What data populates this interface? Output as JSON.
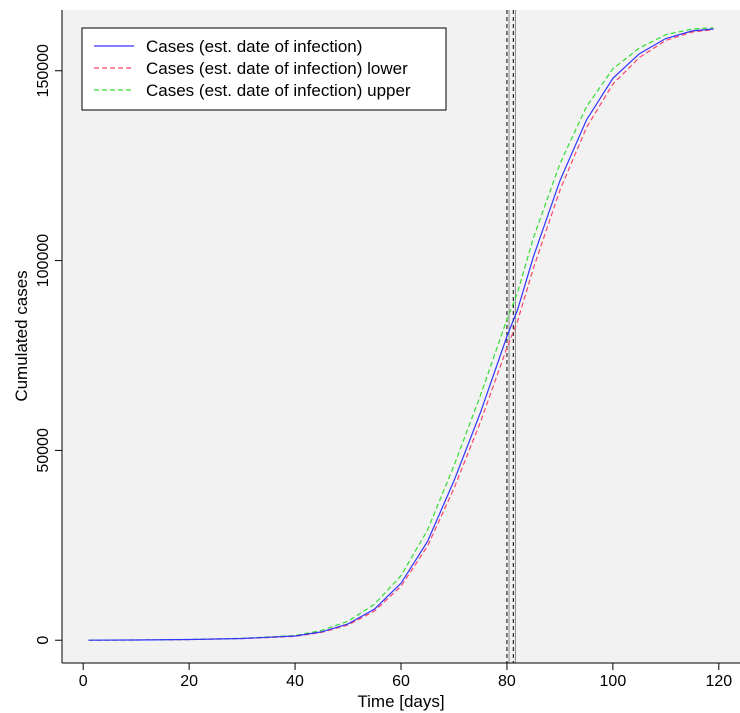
{
  "chart_data": {
    "type": "line",
    "xlabel": "Time [days]",
    "ylabel": "Cumulated cases",
    "xlim": [
      -4,
      124
    ],
    "ylim": [
      -6000,
      166000
    ],
    "xticks": [
      0,
      20,
      40,
      60,
      80,
      100,
      120
    ],
    "yticks": [
      0,
      50000,
      100000,
      150000
    ],
    "grid": false,
    "background": "#f2f2f2",
    "legend_position": "top-left",
    "x": [
      1,
      10,
      20,
      30,
      40,
      45,
      50,
      55,
      60,
      65,
      70,
      75,
      80,
      82,
      85,
      90,
      95,
      100,
      105,
      110,
      115,
      119
    ],
    "series": [
      {
        "name": "Cases (est. date of infection)",
        "color": "#3333ff",
        "dash": "solid",
        "values": [
          0,
          50,
          180,
          450,
          1100,
          2200,
          4300,
          8200,
          15000,
          26000,
          42000,
          60000,
          80000,
          87000,
          101000,
          121000,
          137000,
          148000,
          154500,
          158500,
          160500,
          161000
        ]
      },
      {
        "name": "Cases (est. date of infection) lower",
        "color": "#ff4466",
        "dash": "dashed",
        "values": [
          0,
          50,
          170,
          420,
          1000,
          2050,
          4000,
          7700,
          14200,
          24800,
          40000,
          57500,
          77000,
          84000,
          98000,
          118500,
          135000,
          146500,
          153500,
          158000,
          160200,
          160800
        ]
      },
      {
        "name": "Cases (est. date of infection) upper",
        "color": "#33dd33",
        "dash": "dashed",
        "values": [
          0,
          60,
          200,
          500,
          1250,
          2550,
          5000,
          9500,
          17000,
          29000,
          46000,
          64500,
          84500,
          91500,
          106000,
          125500,
          140500,
          150500,
          156000,
          159500,
          161000,
          161300
        ]
      }
    ],
    "vertical_lines": [
      {
        "x": 80,
        "color": "#000000",
        "dash": "dashed"
      },
      {
        "x": 80.4,
        "color": "#888888",
        "dash": "solid"
      },
      {
        "x": 81.2,
        "color": "#000000",
        "dash": "dashed"
      },
      {
        "x": 81.6,
        "color": "#888888",
        "dash": "solid"
      }
    ]
  }
}
